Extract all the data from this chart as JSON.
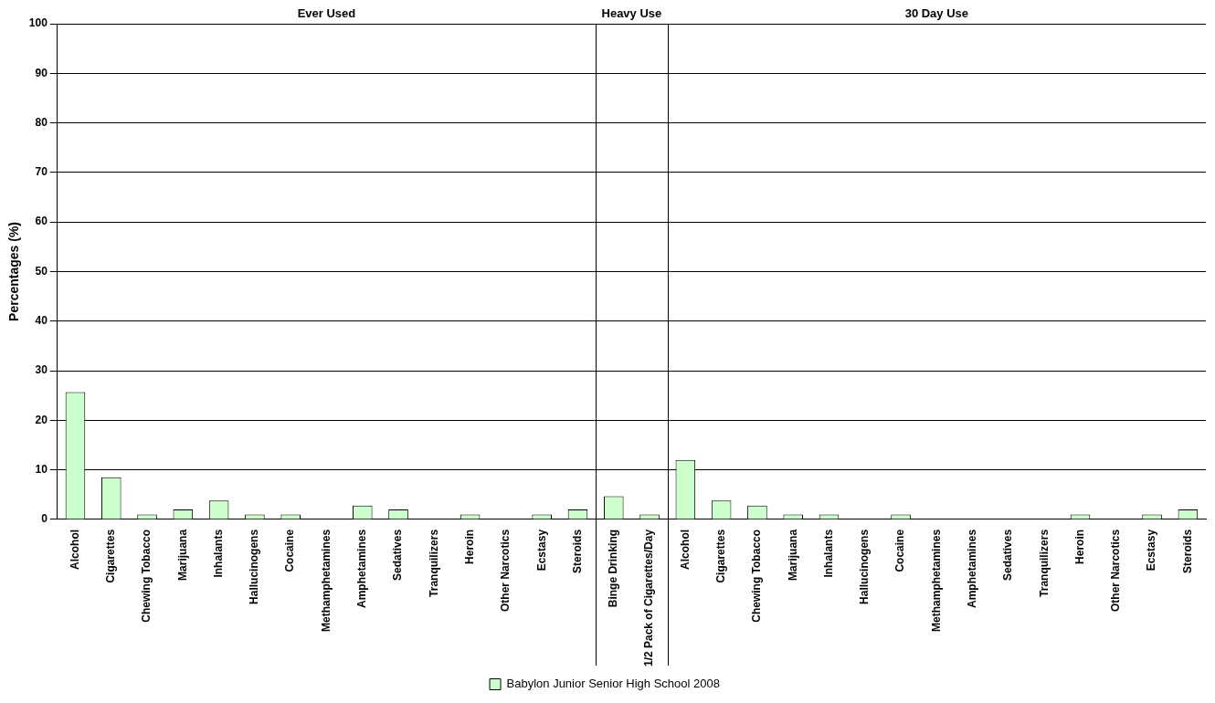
{
  "chart_data": {
    "type": "bar",
    "ylabel": "Percentages (%)",
    "annotations": [
      "Ever Used",
      "Heavy Use",
      "30 Day Use"
    ],
    "categories": [
      "Alcohol",
      "Cigarettes",
      "Chewing Tobacco",
      "Marijuana",
      "Inhalants",
      "Hallucinogens",
      "Cocaine",
      "Methamphetamines",
      "Amphetamines",
      "Sedatives",
      "Tranquilizers",
      "Heroin",
      "Other Narcotics",
      "Ecstasy",
      "Steroids",
      "Binge Drinking",
      "1/2 Pack of Cigarettes/Day",
      "Alcohol",
      "Cigarettes",
      "Chewing Tobacco",
      "Marijuana",
      "Inhalants",
      "Hallucinogens",
      "Cocaine",
      "Methamphetamines",
      "Amphetamines",
      "Sedatives",
      "Tranquilizers",
      "Heroin",
      "Other Narcotics",
      "Ecstasy",
      "Steroids"
    ],
    "series": [
      {
        "name": "Babylon Junior Senior High School 2008",
        "color": "#ccffcc",
        "values": [
          25.7,
          8.5,
          1,
          2,
          3.8,
          1,
          1,
          0,
          2.8,
          2,
          0,
          1,
          0,
          1,
          2,
          4.7,
          1,
          12,
          3.8,
          2.8,
          1,
          1,
          0,
          1,
          0,
          0,
          0,
          0,
          1,
          0,
          1,
          2
        ]
      }
    ],
    "ylim": [
      0,
      100
    ],
    "yticks": [
      0,
      10,
      20,
      30,
      40,
      50,
      60,
      70,
      80,
      90,
      100
    ],
    "grid": "y",
    "legend": "bottom"
  }
}
